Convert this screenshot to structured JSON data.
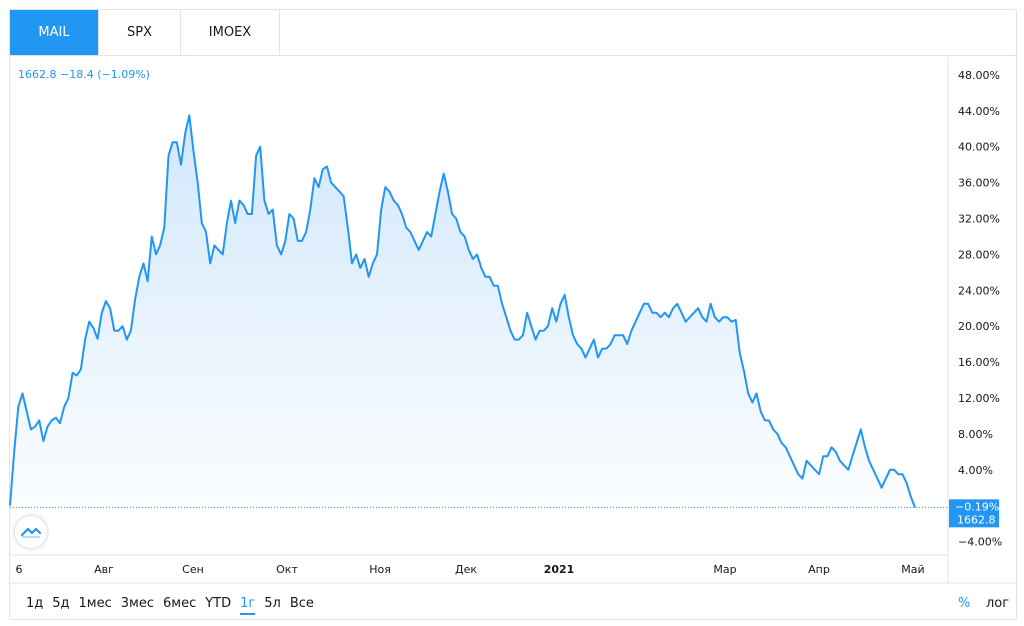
{
  "tabs": [
    {
      "label": "MAIL",
      "active": true
    },
    {
      "label": "SPX",
      "active": false
    },
    {
      "label": "IMOEX",
      "active": false
    }
  ],
  "legend": "1662.8 −18.4 (−1.09%)",
  "ranges": [
    {
      "label": "1д",
      "active": false
    },
    {
      "label": "5д",
      "active": false
    },
    {
      "label": "1мес",
      "active": false
    },
    {
      "label": "3мес",
      "active": false
    },
    {
      "label": "6мес",
      "active": false
    },
    {
      "label": "YTD",
      "active": false
    },
    {
      "label": "1г",
      "active": true
    },
    {
      "label": "5л",
      "active": false
    },
    {
      "label": "Все",
      "active": false
    }
  ],
  "scale": {
    "percent": "%",
    "log": "лог"
  },
  "colors": {
    "line": "#2196f3",
    "area_top": "#cfe6fb",
    "grid": "#e0e3eb",
    "text": "#131722"
  },
  "chart_data": {
    "type": "area",
    "series": [
      {
        "name": "MAIL",
        "unit": "%",
        "values": [
          0.0,
          6.0,
          11.0,
          12.5,
          10.5,
          8.5,
          8.8,
          9.5,
          7.2,
          8.8,
          9.5,
          9.8,
          9.2,
          11.0,
          12.0,
          14.8,
          14.5,
          15.2,
          18.5,
          20.5,
          19.8,
          18.6,
          21.5,
          22.8,
          22.0,
          19.5,
          19.5,
          20.0,
          18.5,
          19.5,
          23.0,
          25.5,
          27.0,
          25.0,
          30.0,
          28.0,
          29.0,
          31.0,
          39.0,
          40.5,
          40.5,
          38.0,
          41.5,
          43.5,
          39.5,
          36.0,
          31.5,
          30.5,
          27.0,
          29.0,
          28.5,
          28.0,
          31.5,
          34.0,
          31.5,
          34.0,
          33.5,
          32.5,
          32.5,
          39.0,
          40.0,
          34.0,
          32.5,
          33.0,
          29.0,
          28.0,
          29.5,
          32.5,
          32.0,
          29.5,
          29.5,
          30.5,
          33.0,
          36.5,
          35.5,
          37.5,
          37.8,
          36.0,
          35.5,
          35.0,
          34.5,
          31.0,
          27.0,
          28.0,
          26.5,
          27.5,
          25.5,
          27.0,
          28.0,
          33.0,
          35.5,
          35.0,
          34.0,
          33.5,
          32.5,
          31.0,
          30.5,
          29.5,
          28.5,
          29.5,
          30.5,
          30.0,
          32.5,
          35.0,
          37.0,
          35.0,
          32.5,
          32.0,
          30.5,
          30.0,
          28.5,
          27.5,
          28.0,
          26.5,
          25.5,
          25.5,
          24.5,
          24.5,
          22.5,
          21.0,
          19.5,
          18.5,
          18.5,
          19.0,
          21.5,
          20.0,
          18.5,
          19.5,
          19.5,
          20.0,
          22.0,
          20.5,
          22.5,
          23.5,
          21.0,
          19.0,
          18.0,
          17.5,
          16.5,
          17.5,
          18.5,
          16.5,
          17.5,
          17.5,
          18.0,
          19.0,
          19.0,
          19.0,
          18.0,
          19.5,
          20.5,
          21.5,
          22.5,
          22.5,
          21.5,
          21.5,
          21.0,
          21.5,
          21.0,
          22.0,
          22.5,
          21.5,
          20.5,
          21.0,
          21.5,
          22.0,
          21.0,
          20.5,
          22.5,
          21.0,
          20.5,
          21.0,
          21.0,
          20.5,
          20.7,
          17.0,
          15.0,
          12.5,
          11.5,
          12.5,
          10.5,
          9.5,
          9.5,
          8.5,
          8.0,
          7.0,
          6.5,
          5.5,
          4.5,
          3.5,
          3.0,
          5.0,
          4.5,
          4.0,
          3.5,
          5.5,
          5.5,
          6.5,
          6.0,
          5.0,
          4.5,
          4.0,
          5.5,
          7.0,
          8.5,
          6.5,
          5.0,
          4.0,
          3.0,
          2.0,
          3.0,
          4.0,
          4.0,
          3.5,
          3.5,
          2.5,
          1.0,
          -0.19
        ]
      }
    ],
    "x_ticks": [
      "6",
      "Авг",
      "Сен",
      "Окт",
      "Ноя",
      "Дек",
      "2021",
      "Мар",
      "Апр",
      "Май"
    ],
    "y_ticks": [
      "48.00%",
      "44.00%",
      "40.00%",
      "36.00%",
      "32.00%",
      "28.00%",
      "24.00%",
      "20.00%",
      "16.00%",
      "12.00%",
      "8.00%",
      "4.00%",
      "−4.00%"
    ],
    "ylim": [
      -5.5,
      50
    ],
    "last_value_percent": "−0.19%",
    "last_value_price": "1662.8",
    "grid": false
  }
}
